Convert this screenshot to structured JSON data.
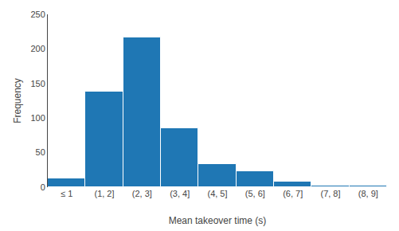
{
  "chart_data": {
    "type": "bar",
    "categories": [
      "≤ 1",
      "(1, 2]",
      "(2, 3]",
      "(3, 4]",
      "(4, 5]",
      "(5, 6]",
      "(6, 7]",
      "(7, 8]",
      "(8, 9]"
    ],
    "values": [
      13,
      138,
      217,
      85,
      33,
      23,
      8,
      2,
      2
    ],
    "xlabel": "Mean takeover time (s)",
    "ylabel": "Frequency",
    "ylim": [
      0,
      250
    ],
    "yticks": [
      0,
      50,
      100,
      150,
      200,
      250
    ],
    "grid": false
  }
}
